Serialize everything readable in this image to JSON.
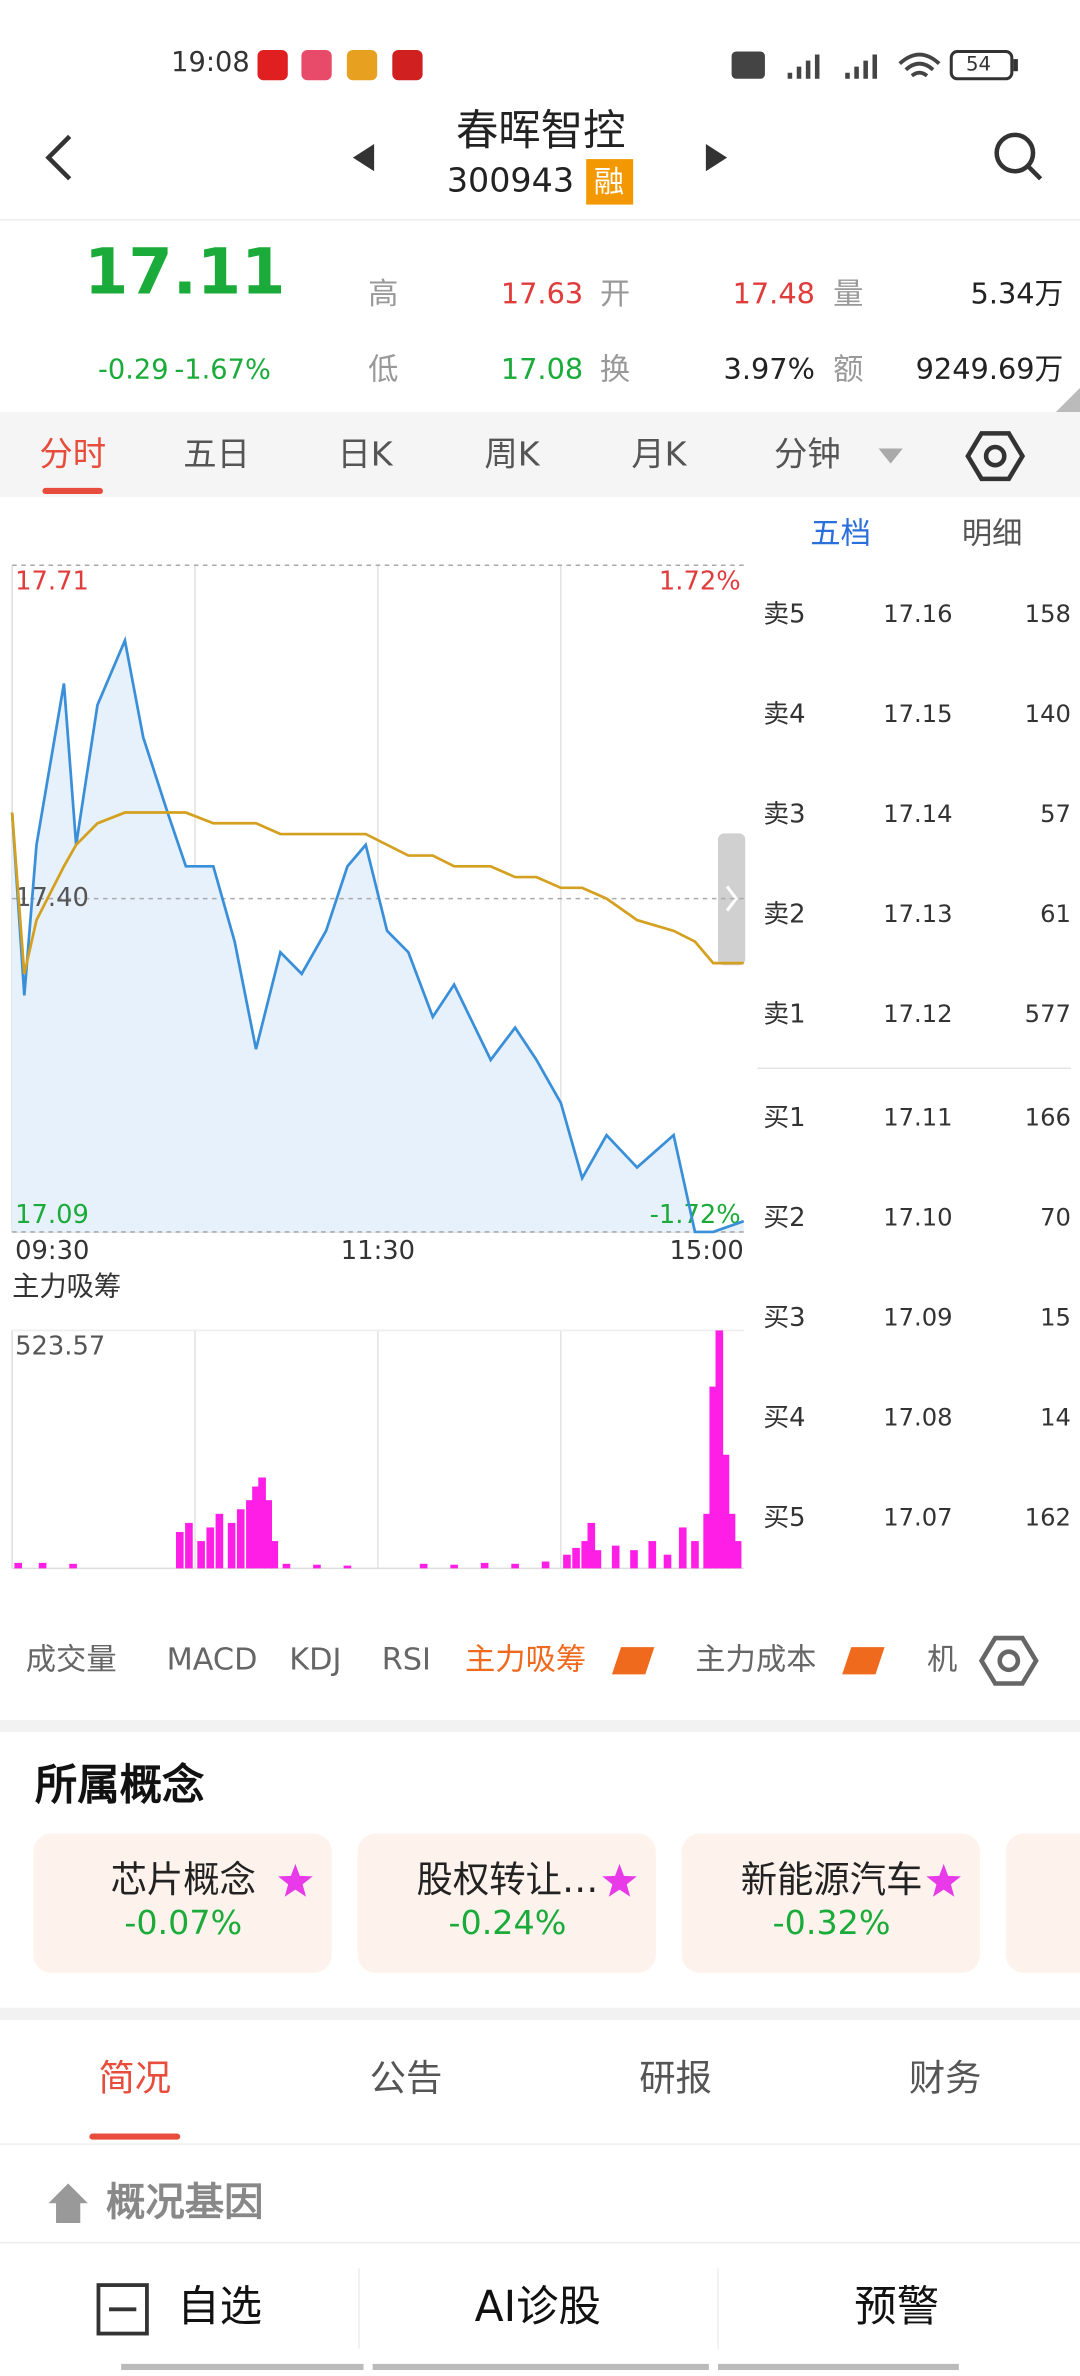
{
  "status": {
    "time": "19:08",
    "battery": "54"
  },
  "header": {
    "title": "春晖智控",
    "code": "300943",
    "badge": "融"
  },
  "quote": {
    "price": "17.11",
    "change": "-0.29",
    "change_pct": "-1.67%",
    "stats": [
      {
        "label": "高",
        "value": "17.63",
        "color": "#e03c3c"
      },
      {
        "label": "开",
        "value": "17.48",
        "color": "#e03c3c"
      },
      {
        "label": "量",
        "value": "5.34万",
        "color": "#222222"
      },
      {
        "label": "低",
        "value": "17.08",
        "color": "#1aab3a"
      },
      {
        "label": "换",
        "value": "3.97%",
        "color": "#222222"
      },
      {
        "label": "额",
        "value": "9249.69万",
        "color": "#222222"
      }
    ]
  },
  "tabs": [
    "分时",
    "五日",
    "日K",
    "周K",
    "月K",
    "分钟"
  ],
  "order_tabs": [
    "五档",
    "明细"
  ],
  "order_book": [
    {
      "label": "卖5",
      "price": "17.16",
      "qty": "158"
    },
    {
      "label": "卖4",
      "price": "17.15",
      "qty": "140"
    },
    {
      "label": "卖3",
      "price": "17.14",
      "qty": "57"
    },
    {
      "label": "卖2",
      "price": "17.13",
      "qty": "61"
    },
    {
      "label": "卖1",
      "price": "17.12",
      "qty": "577"
    },
    {
      "label": "买1",
      "price": "17.11",
      "qty": "166"
    },
    {
      "label": "买2",
      "price": "17.10",
      "qty": "70"
    },
    {
      "label": "买3",
      "price": "17.09",
      "qty": "15"
    },
    {
      "label": "买4",
      "price": "17.08",
      "qty": "14"
    },
    {
      "label": "买5",
      "price": "17.07",
      "qty": "162"
    }
  ],
  "chart_data": [
    {
      "type": "line",
      "x": [
        0,
        4,
        8,
        17,
        21,
        28,
        37,
        43,
        51,
        57,
        66,
        73,
        80,
        88,
        95,
        103,
        110,
        116,
        123,
        130,
        138,
        145,
        157,
        165,
        172,
        180,
        187,
        195,
        205,
        217,
        224,
        230,
        240
      ],
      "series": [
        {
          "color": "#3a8fd9",
          "values": [
            17.48,
            17.31,
            17.45,
            17.6,
            17.45,
            17.58,
            17.64,
            17.55,
            17.48,
            17.43,
            17.43,
            17.36,
            17.26,
            17.35,
            17.33,
            17.37,
            17.43,
            17.45,
            17.37,
            17.35,
            17.29,
            17.32,
            17.25,
            17.28,
            17.25,
            17.21,
            17.14,
            17.18,
            17.15,
            17.18,
            17.09,
            17.09,
            17.1
          ]
        },
        {
          "color": "#d4a020",
          "values": [
            17.48,
            17.33,
            17.38,
            17.43,
            17.45,
            17.47,
            17.48,
            17.48,
            17.48,
            17.48,
            17.47,
            17.47,
            17.47,
            17.46,
            17.46,
            17.46,
            17.46,
            17.46,
            17.45,
            17.44,
            17.44,
            17.43,
            17.43,
            17.42,
            17.42,
            17.41,
            17.41,
            17.4,
            17.38,
            17.37,
            17.36,
            17.34,
            17.34
          ]
        }
      ],
      "area_color": "#e6f1fc",
      "xlim": [
        0,
        240
      ],
      "xticks": [
        {
          "value": 0,
          "label": "09:30"
        },
        {
          "value": 120,
          "label": "11:30"
        },
        {
          "value": 240,
          "label": "15:00"
        }
      ],
      "ylim": [
        17.09,
        17.71
      ],
      "yticks": [
        17.71,
        {
          "value": 17.4,
          "label": "17.40"
        },
        17.09
      ],
      "y2lim": [
        -1.72,
        1.72
      ],
      "y2ticks": [
        {
          "value": 1.72,
          "label": "1.72%"
        },
        {
          "value": -1.72,
          "label": "-1.72%"
        }
      ]
    },
    {
      "type": "bar",
      "title": "主力吸筹",
      "x": [
        2,
        10,
        20,
        55,
        58,
        62,
        65,
        68,
        72,
        75,
        78,
        80,
        82,
        84,
        86,
        90,
        100,
        110,
        135,
        145,
        155,
        165,
        175,
        182,
        185,
        188,
        190,
        192,
        198,
        204,
        210,
        215,
        220,
        224,
        228,
        230,
        232,
        234,
        236,
        238
      ],
      "values": [
        12,
        12,
        10,
        80,
        100,
        60,
        90,
        120,
        100,
        130,
        150,
        180,
        200,
        150,
        60,
        10,
        8,
        6,
        10,
        8,
        12,
        10,
        15,
        30,
        45,
        60,
        100,
        40,
        50,
        40,
        60,
        30,
        90,
        60,
        120,
        400,
        523.57,
        250,
        120,
        60
      ],
      "color": "#ff1ee6",
      "xlim": [
        0,
        240
      ],
      "ylim": [
        0,
        523.57
      ],
      "yticks": [
        523.57
      ]
    }
  ],
  "indicator_tabs": [
    "成交量",
    "MACD",
    "KDJ",
    "RSI",
    "主力吸筹",
    "主力成本",
    "机"
  ],
  "concepts": {
    "title": "所属概念",
    "items": [
      {
        "name": "芯片概念",
        "pct": "-0.07%"
      },
      {
        "name": "股权转让…",
        "pct": "-0.24%"
      },
      {
        "name": "新能源汽车",
        "pct": "-0.32%"
      }
    ]
  },
  "info_tabs": [
    "简况",
    "公告",
    "研报",
    "财务"
  ],
  "section": {
    "title": "概况基因"
  },
  "bottom_bar": [
    "自选",
    "AI诊股",
    "预警"
  ]
}
